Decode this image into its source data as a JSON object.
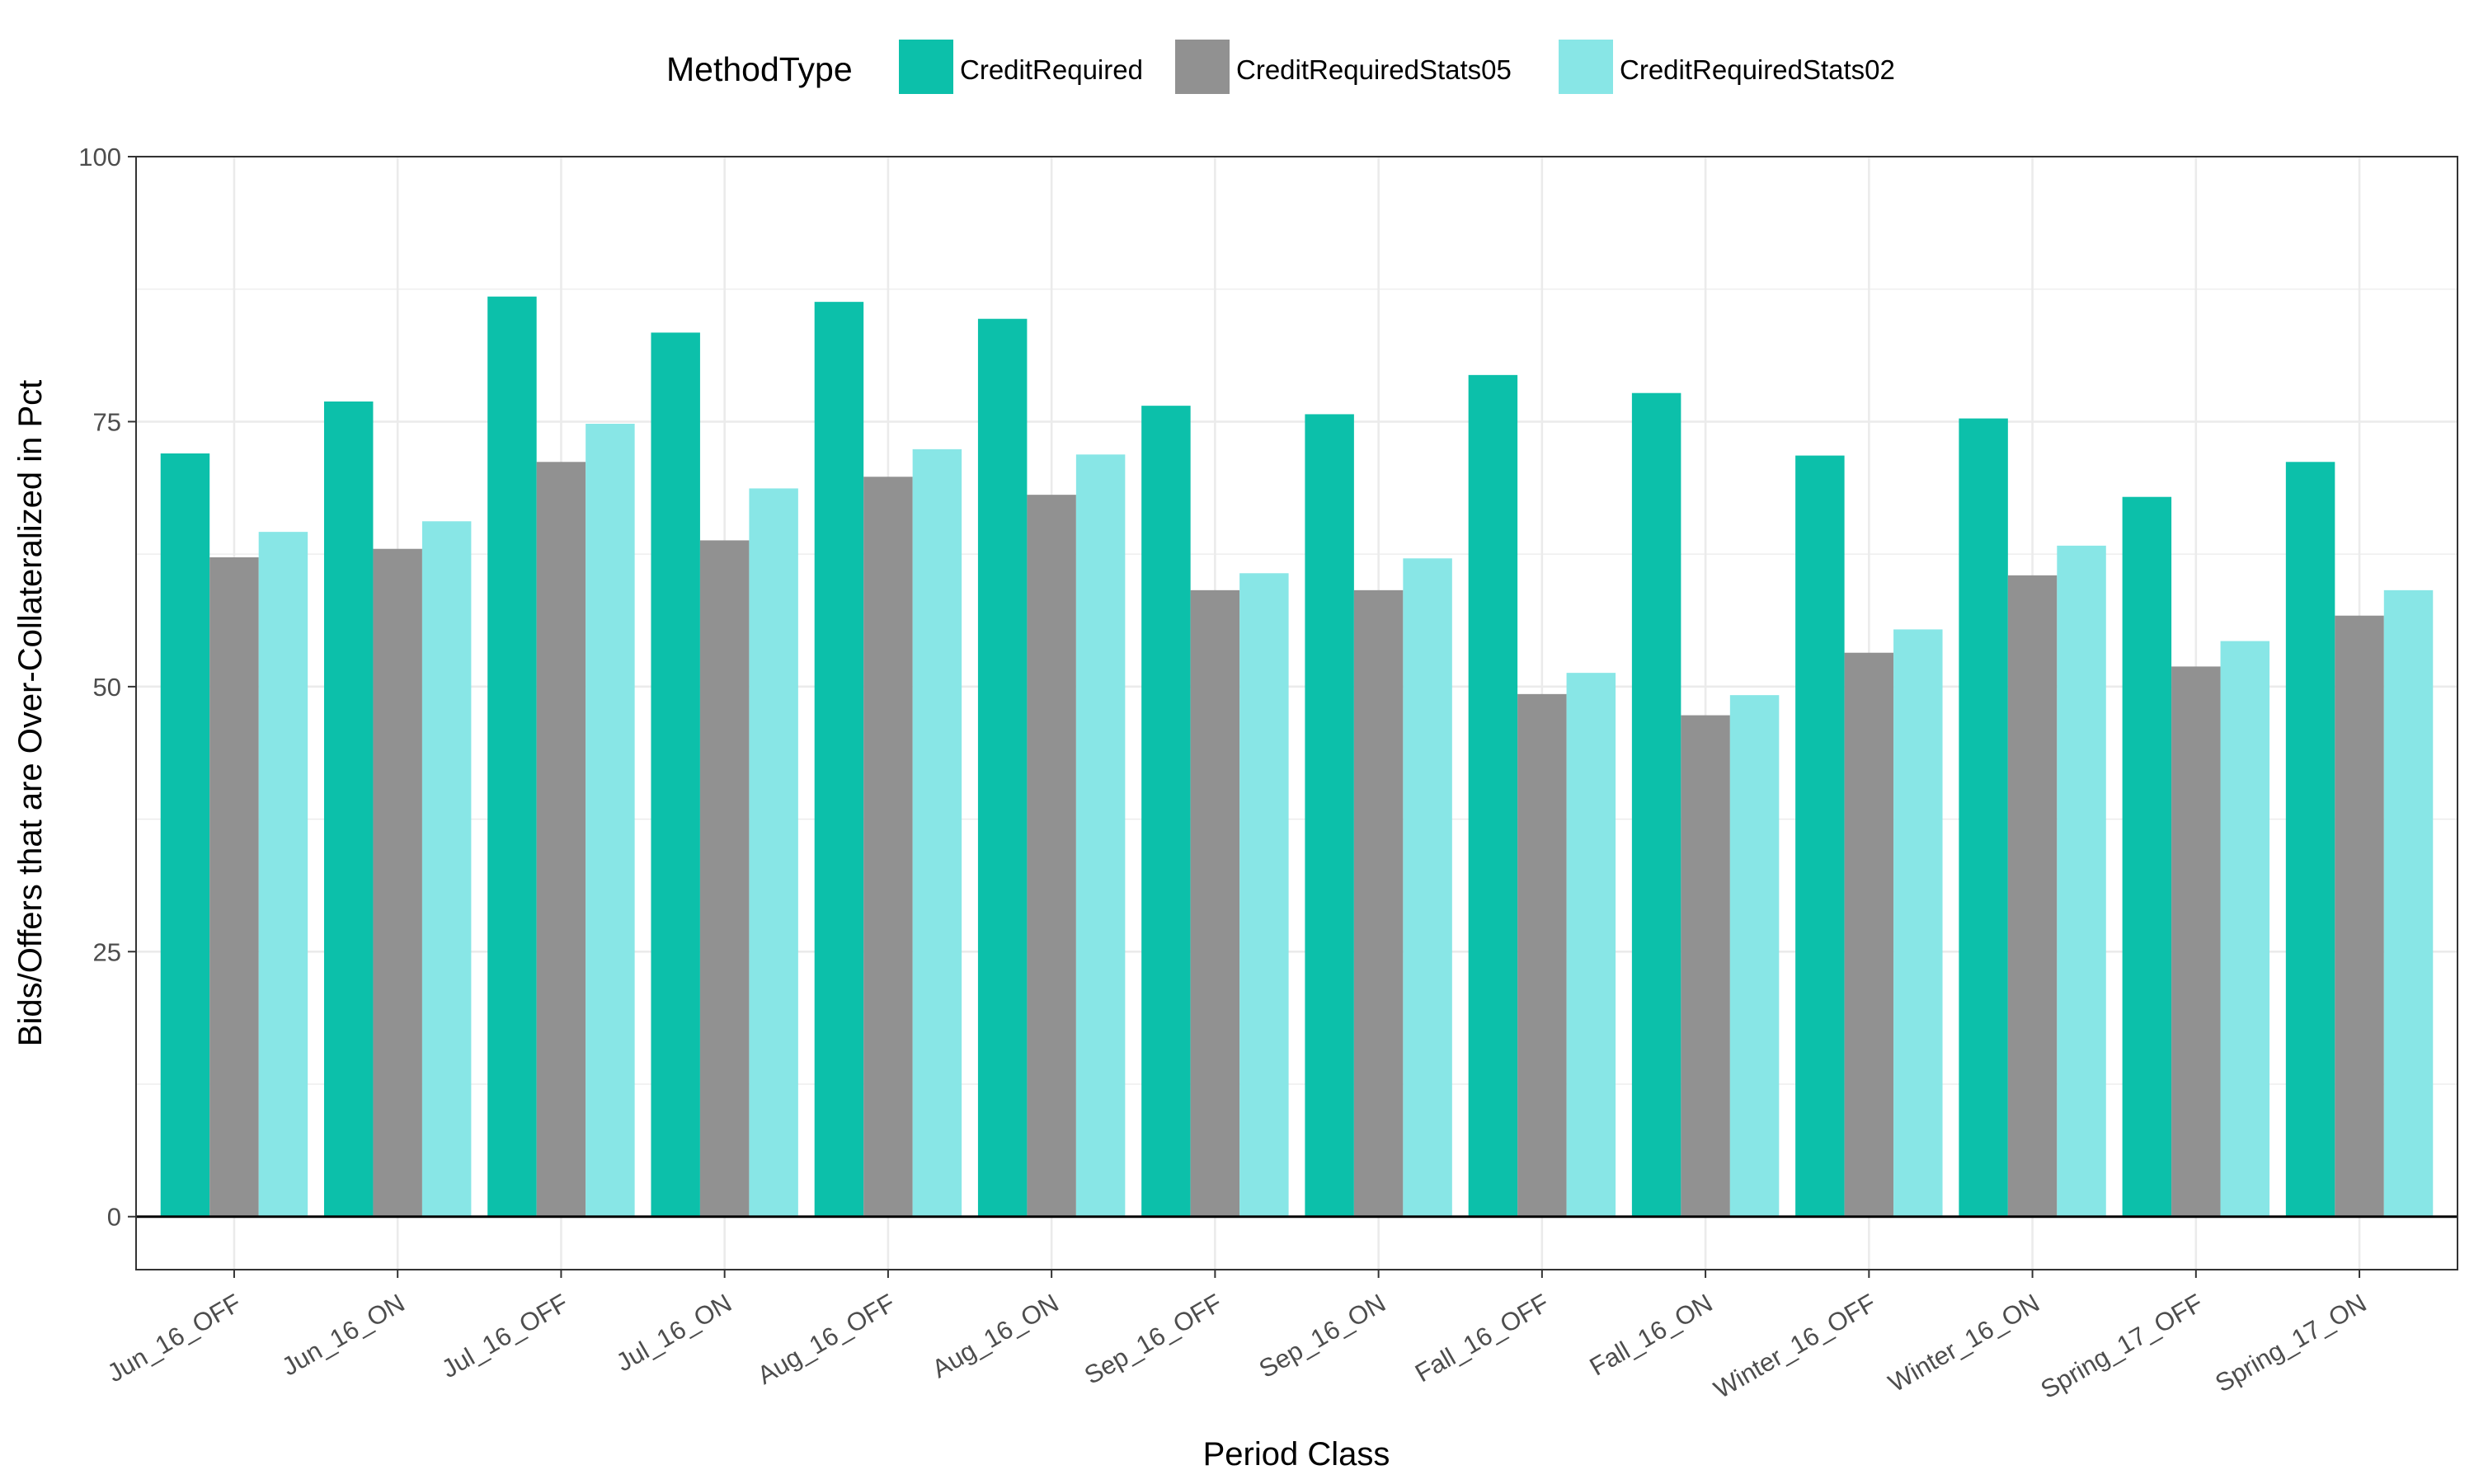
{
  "chart_data": {
    "type": "bar",
    "xlabel": "Period Class",
    "ylabel": "Bids/Offers that are Over-Collateralized in Pct",
    "ylim": [
      -5,
      100
    ],
    "yticks": [
      0,
      25,
      50,
      75,
      100
    ],
    "grid": true,
    "legend_position": "top",
    "legend_title": "MethodType",
    "categories": [
      "Jun_16_OFF",
      "Jun_16_ON",
      "Jul_16_OFF",
      "Jul_16_ON",
      "Aug_16_OFF",
      "Aug_16_ON",
      "Sep_16_OFF",
      "Sep_16_ON",
      "Fall_16_OFF",
      "Fall_16_ON",
      "Winter_16_OFF",
      "Winter_16_ON",
      "Spring_17_OFF",
      "Spring_17_ON"
    ],
    "series": [
      {
        "name": "CreditRequired",
        "color": "#0cc0aa",
        "values": [
          72.0,
          76.9,
          86.8,
          83.4,
          86.3,
          84.7,
          76.5,
          75.7,
          79.4,
          77.7,
          71.8,
          75.3,
          67.9,
          71.2
        ]
      },
      {
        "name": "CreditRequiredStats05",
        "color": "#919191",
        "values": [
          62.2,
          63.0,
          71.2,
          63.8,
          69.8,
          68.1,
          59.1,
          59.1,
          49.3,
          47.3,
          53.2,
          60.5,
          51.9,
          56.7
        ]
      },
      {
        "name": "CreditRequiredStats02",
        "color": "#88e6e6",
        "values": [
          64.6,
          65.6,
          74.8,
          68.7,
          72.4,
          71.9,
          60.7,
          62.1,
          51.3,
          49.2,
          55.4,
          63.3,
          54.3,
          59.1
        ]
      }
    ]
  }
}
